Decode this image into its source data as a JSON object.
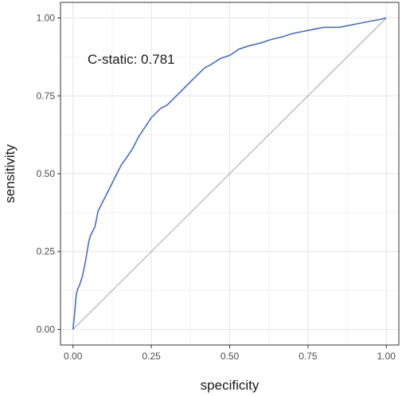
{
  "chart_data": {
    "type": "line",
    "title": "",
    "xlabel": "specificity",
    "ylabel": "sensitivity",
    "xlim": [
      -0.04,
      1.04
    ],
    "ylim": [
      -0.05,
      1.05
    ],
    "x_ticks": [
      0.0,
      0.25,
      0.5,
      0.75,
      1.0
    ],
    "x_tick_labels": [
      "0.00",
      "0.25",
      "0.50",
      "0.75",
      "1.00"
    ],
    "y_ticks": [
      0.0,
      0.25,
      0.5,
      0.75,
      1.0
    ],
    "y_tick_labels": [
      "0.00",
      "0.25",
      "0.50",
      "0.75",
      "1.00"
    ],
    "grid": true,
    "annotation": "C-static: 0.781",
    "reference_line": {
      "x": [
        0,
        1
      ],
      "y": [
        0,
        1
      ],
      "color": "#b3b3b3"
    },
    "series": [
      {
        "color": "#4a6fb5",
        "x": [
          0.0,
          0.005,
          0.01,
          0.015,
          0.02,
          0.03,
          0.04,
          0.045,
          0.05,
          0.055,
          0.06,
          0.065,
          0.07,
          0.08,
          0.09,
          0.1,
          0.12,
          0.14,
          0.155,
          0.17,
          0.19,
          0.21,
          0.23,
          0.25,
          0.27,
          0.28,
          0.3,
          0.32,
          0.34,
          0.35,
          0.37,
          0.39,
          0.42,
          0.44,
          0.47,
          0.5,
          0.53,
          0.56,
          0.6,
          0.63,
          0.67,
          0.7,
          0.75,
          0.8,
          0.85,
          0.9,
          0.95,
          0.98,
          1.0
        ],
        "y": [
          0.0,
          0.05,
          0.11,
          0.13,
          0.14,
          0.17,
          0.22,
          0.25,
          0.28,
          0.3,
          0.31,
          0.32,
          0.33,
          0.38,
          0.4,
          0.42,
          0.46,
          0.5,
          0.53,
          0.55,
          0.58,
          0.62,
          0.65,
          0.68,
          0.7,
          0.71,
          0.72,
          0.74,
          0.76,
          0.77,
          0.79,
          0.81,
          0.84,
          0.85,
          0.87,
          0.88,
          0.9,
          0.91,
          0.92,
          0.93,
          0.94,
          0.95,
          0.96,
          0.97,
          0.97,
          0.98,
          0.99,
          0.995,
          1.0
        ]
      }
    ]
  }
}
